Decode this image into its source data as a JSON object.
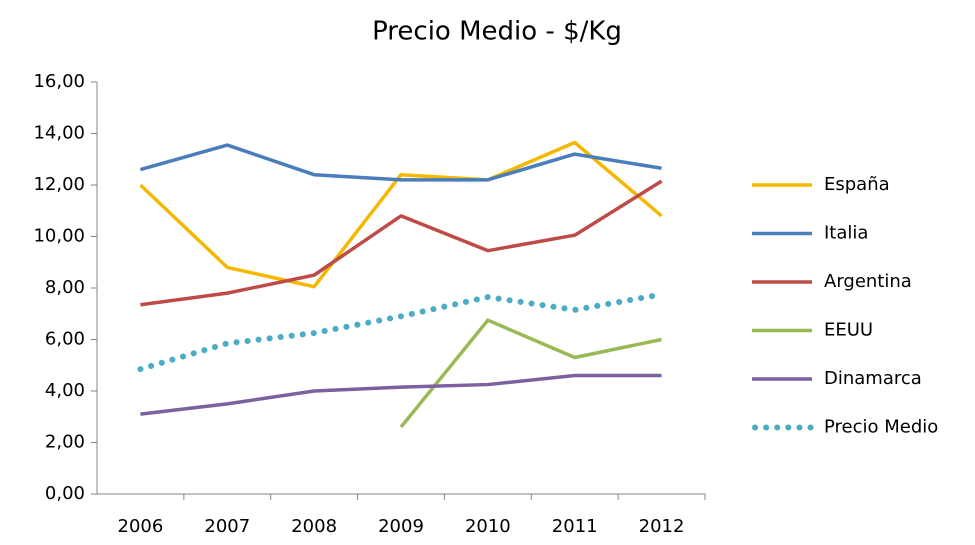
{
  "chart_data": {
    "type": "line",
    "title": "Precio Medio - $/Kg",
    "categories": [
      "2006",
      "2007",
      "2008",
      "2009",
      "2010",
      "2011",
      "2012"
    ],
    "series": [
      {
        "name": "España",
        "color": "#f5b800",
        "values": [
          12.0,
          8.8,
          8.05,
          12.4,
          12.2,
          13.65,
          10.8
        ]
      },
      {
        "name": "Italia",
        "color": "#4a7ebb",
        "values": [
          12.6,
          13.55,
          12.4,
          12.2,
          12.2,
          13.2,
          12.65
        ]
      },
      {
        "name": "Argentina",
        "color": "#be4b48",
        "values": [
          7.35,
          7.8,
          8.5,
          10.8,
          9.45,
          10.05,
          12.15
        ]
      },
      {
        "name": "EEUU",
        "color": "#98b954",
        "values": [
          null,
          null,
          null,
          2.6,
          6.75,
          5.3,
          6.0
        ]
      },
      {
        "name": "Dinamarca",
        "color": "#7d60a0",
        "values": [
          3.1,
          3.5,
          4.0,
          4.15,
          4.25,
          4.6,
          4.6
        ]
      },
      {
        "name": "Precio Medio",
        "color": "#4bacc6",
        "dotted": true,
        "values": [
          4.85,
          5.85,
          6.25,
          6.9,
          7.65,
          7.15,
          7.75
        ]
      }
    ],
    "ylim": [
      0,
      16
    ],
    "yticks": [
      {
        "value": 0,
        "label": "0,00"
      },
      {
        "value": 2,
        "label": "2,00"
      },
      {
        "value": 4,
        "label": "4,00"
      },
      {
        "value": 6,
        "label": "6,00"
      },
      {
        "value": 8,
        "label": "8,00"
      },
      {
        "value": 10,
        "label": "10,00"
      },
      {
        "value": 12,
        "label": "12,00"
      },
      {
        "value": 14,
        "label": "14,00"
      },
      {
        "value": 16,
        "label": "16,00"
      }
    ],
    "legend": "right"
  }
}
